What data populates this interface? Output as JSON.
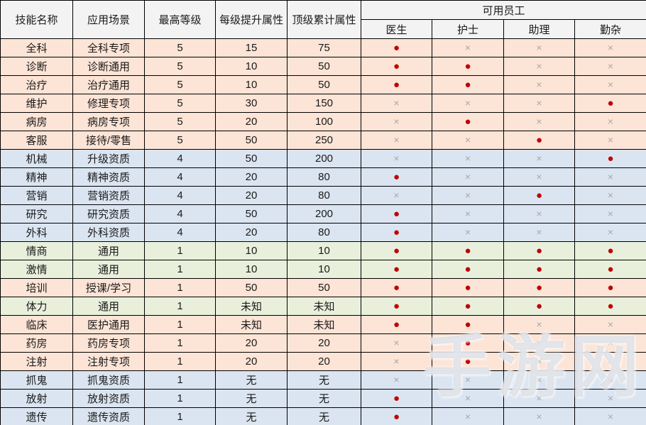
{
  "table": {
    "header": {
      "skill_name": "技能名称",
      "scenario": "应用场景",
      "max_level": "最高等级",
      "per_level_gain": "每级提升属性",
      "max_total": "顶级累计属性",
      "staff_group": "可用员工",
      "staff": [
        "医生",
        "护士",
        "助理",
        "勤杂"
      ]
    },
    "symbols": {
      "available": "●",
      "unavailable": "×"
    },
    "rows": [
      {
        "skill": "全科",
        "scenario": "全科专项",
        "level": "5",
        "gain": "15",
        "total": "75",
        "staff": [
          true,
          false,
          false,
          false
        ],
        "tint": "peach"
      },
      {
        "skill": "诊断",
        "scenario": "诊断通用",
        "level": "5",
        "gain": "10",
        "total": "50",
        "staff": [
          true,
          true,
          false,
          false
        ],
        "tint": "peach"
      },
      {
        "skill": "治疗",
        "scenario": "治疗通用",
        "level": "5",
        "gain": "10",
        "total": "50",
        "staff": [
          true,
          true,
          false,
          false
        ],
        "tint": "peach"
      },
      {
        "skill": "维护",
        "scenario": "修理专项",
        "level": "5",
        "gain": "30",
        "total": "150",
        "staff": [
          false,
          false,
          false,
          true
        ],
        "tint": "peach"
      },
      {
        "skill": "病房",
        "scenario": "病房专项",
        "level": "5",
        "gain": "20",
        "total": "100",
        "staff": [
          false,
          true,
          false,
          false
        ],
        "tint": "peach"
      },
      {
        "skill": "客服",
        "scenario": "接待/零售",
        "level": "5",
        "gain": "50",
        "total": "250",
        "staff": [
          false,
          false,
          true,
          false
        ],
        "tint": "peach"
      },
      {
        "skill": "机械",
        "scenario": "升级资质",
        "level": "4",
        "gain": "50",
        "total": "200",
        "staff": [
          false,
          false,
          false,
          true
        ],
        "tint": "blue"
      },
      {
        "skill": "精神",
        "scenario": "精神资质",
        "level": "4",
        "gain": "20",
        "total": "80",
        "staff": [
          true,
          false,
          false,
          false
        ],
        "tint": "blue"
      },
      {
        "skill": "营销",
        "scenario": "营销资质",
        "level": "4",
        "gain": "20",
        "total": "80",
        "staff": [
          false,
          false,
          true,
          false
        ],
        "tint": "blue"
      },
      {
        "skill": "研究",
        "scenario": "研究资质",
        "level": "4",
        "gain": "50",
        "total": "200",
        "staff": [
          true,
          false,
          false,
          false
        ],
        "tint": "blue"
      },
      {
        "skill": "外科",
        "scenario": "外科资质",
        "level": "4",
        "gain": "20",
        "total": "80",
        "staff": [
          true,
          false,
          false,
          false
        ],
        "tint": "blue"
      },
      {
        "skill": "情商",
        "scenario": "通用",
        "level": "1",
        "gain": "10",
        "total": "10",
        "staff": [
          true,
          true,
          true,
          true
        ],
        "tint": "green"
      },
      {
        "skill": "激情",
        "scenario": "通用",
        "level": "1",
        "gain": "10",
        "total": "10",
        "staff": [
          true,
          true,
          true,
          true
        ],
        "tint": "green"
      },
      {
        "skill": "培训",
        "scenario": "授课/学习",
        "level": "1",
        "gain": "50",
        "total": "50",
        "staff": [
          true,
          true,
          true,
          true
        ],
        "tint": "peach"
      },
      {
        "skill": "体力",
        "scenario": "通用",
        "level": "1",
        "gain": "未知",
        "total": "未知",
        "staff": [
          true,
          true,
          true,
          true
        ],
        "tint": "green"
      },
      {
        "skill": "临床",
        "scenario": "医护通用",
        "level": "1",
        "gain": "未知",
        "total": "未知",
        "staff": [
          true,
          true,
          false,
          false
        ],
        "tint": "peach"
      },
      {
        "skill": "药房",
        "scenario": "药房专项",
        "level": "1",
        "gain": "20",
        "total": "20",
        "staff": [
          false,
          true,
          false,
          false
        ],
        "tint": "peach"
      },
      {
        "skill": "注射",
        "scenario": "注射专项",
        "level": "1",
        "gain": "20",
        "total": "20",
        "staff": [
          false,
          true,
          false,
          false
        ],
        "tint": "peach"
      },
      {
        "skill": "抓鬼",
        "scenario": "抓鬼资质",
        "level": "1",
        "gain": "无",
        "total": "无",
        "staff": [
          false,
          false,
          false,
          true
        ],
        "tint": "blue"
      },
      {
        "skill": "放射",
        "scenario": "放射资质",
        "level": "1",
        "gain": "无",
        "total": "无",
        "staff": [
          true,
          false,
          false,
          false
        ],
        "tint": "blue"
      },
      {
        "skill": "遗传",
        "scenario": "遗传资质",
        "level": "1",
        "gain": "无",
        "total": "无",
        "staff": [
          true,
          false,
          false,
          false
        ],
        "tint": "blue"
      }
    ]
  },
  "colors": {
    "peach": "#fce4d6",
    "blue": "#dbe5f1",
    "green": "#e8f0dc",
    "header_bg": "#f3f3f3",
    "dot_red": "#c00000",
    "cross_gray": "#a8a8a8",
    "border": "#000000"
  },
  "watermark": {
    "text": "手游网"
  }
}
